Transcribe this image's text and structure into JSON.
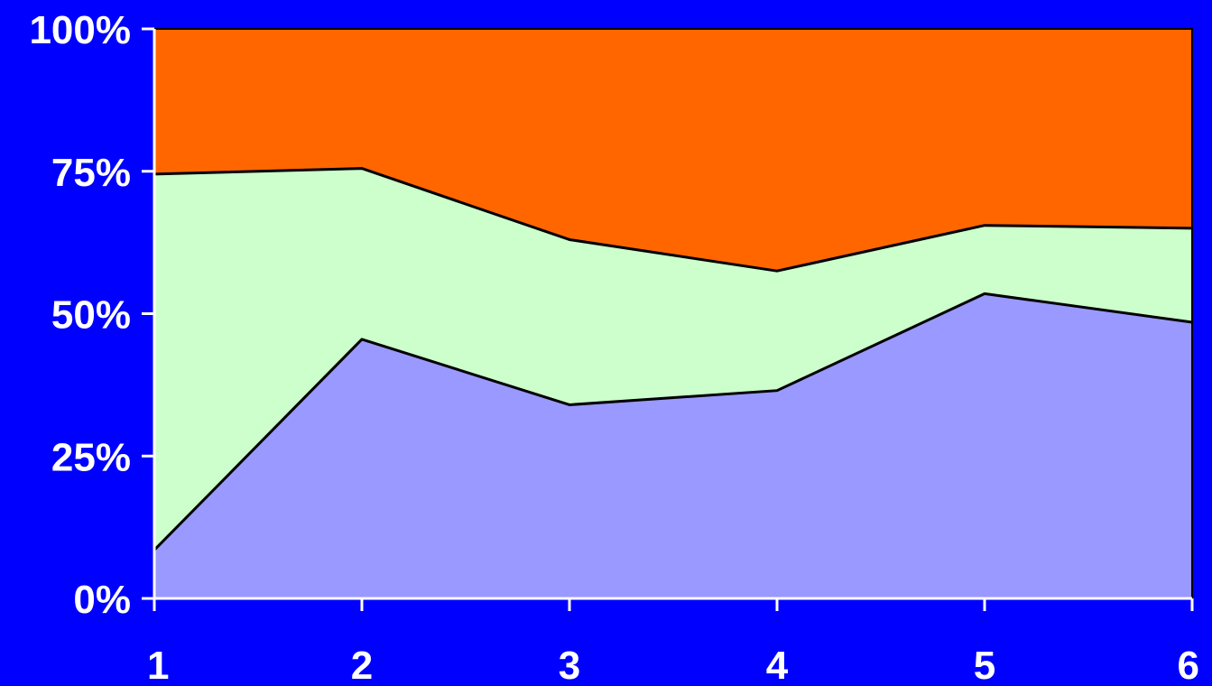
{
  "chart_data": {
    "type": "area",
    "stacked": true,
    "percent_stacked": true,
    "x": [
      "1",
      "2",
      "3",
      "4",
      "5",
      "6"
    ],
    "series": [
      {
        "values": [
          8.5,
          45.5,
          34.0,
          36.5,
          53.5,
          48.5
        ],
        "color": "#9999ff"
      },
      {
        "values": [
          66.0,
          30.0,
          29.0,
          21.0,
          12.0,
          16.5
        ],
        "color": "#ccffcc"
      },
      {
        "values": [
          25.5,
          24.5,
          37.0,
          42.5,
          34.5,
          35.0
        ],
        "color": "#ff6600"
      }
    ],
    "ylim": [
      0,
      100
    ],
    "yticks": [
      "0%",
      "25%",
      "50%",
      "75%",
      "100%"
    ],
    "xticks": [
      "1",
      "2",
      "3",
      "4",
      "5",
      "6"
    ],
    "grid": false,
    "legend": "none",
    "background": "#0000ff",
    "axis_color": "#ffffff",
    "text_color": "#ffffff"
  }
}
